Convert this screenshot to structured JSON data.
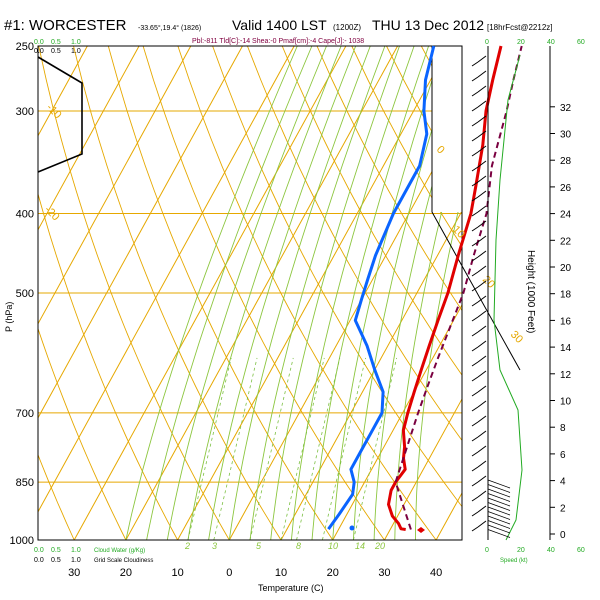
{
  "header": {
    "station": "#1: WORCESTER",
    "coords": "-33.65°,19.4° (1826)",
    "valid": "Valid 1400 LST",
    "valid_utc": "(1200Z)",
    "date": "THU 13 Dec 2012",
    "forecast": "[18hrFcst@2212z]",
    "indices": "Pbl:-811 Tld[C]:-14 Shea:-0 Pmaf[cm]:-4 Cape[J]:- 1038"
  },
  "chart_data": {
    "type": "line",
    "xlabel": "Temperature (C)",
    "ylabel": "P (hPa)",
    "right_label": "Height (1000 Feet)",
    "xlim": [
      -37,
      45
    ],
    "ylim": [
      1000,
      250
    ],
    "log_y": true,
    "x_ticks": [
      -30,
      -20,
      -10,
      0,
      10,
      20,
      30,
      40
    ],
    "x_tick_labels": [
      "30",
      "20",
      "10",
      "0",
      "10",
      "20",
      "30",
      "40"
    ],
    "p_ticks": [
      250,
      300,
      400,
      500,
      700,
      850,
      1000
    ],
    "height_ticks": [
      0,
      2,
      4,
      6,
      8,
      10,
      12,
      14,
      16,
      18,
      20,
      22,
      24,
      26,
      28,
      30,
      32
    ],
    "isotherm_labels": [
      "-10",
      "-20",
      "0",
      "10",
      "20",
      "30"
    ],
    "mixing_ratio_labels": [
      "2",
      "3",
      "5",
      "8",
      "10",
      "14",
      "20"
    ],
    "series": [
      {
        "name": "Temperature",
        "color": "#e00000",
        "points": [
          [
            33,
            971
          ],
          [
            32,
            969
          ],
          [
            31,
            955
          ],
          [
            29,
            935
          ],
          [
            27,
            905
          ],
          [
            26,
            870
          ],
          [
            26,
            850
          ],
          [
            26.5,
            820
          ],
          [
            25,
            795
          ],
          [
            24,
            770
          ],
          [
            22,
            735
          ],
          [
            21,
            700
          ],
          [
            20,
            660
          ],
          [
            19,
            620
          ],
          [
            18,
            580
          ],
          [
            17,
            540
          ],
          [
            16,
            500
          ],
          [
            14,
            450
          ],
          [
            12,
            400
          ],
          [
            10,
            370
          ],
          [
            7,
            330
          ],
          [
            4,
            300
          ],
          [
            2,
            275
          ],
          [
            0,
            250
          ]
        ]
      },
      {
        "name": "Dewpoint",
        "color": "#0a64ff",
        "points": [
          [
            18,
            970
          ],
          [
            18.5,
            930
          ],
          [
            19,
            880
          ],
          [
            18,
            850
          ],
          [
            16,
            820
          ],
          [
            16,
            780
          ],
          [
            16,
            740
          ],
          [
            16,
            700
          ],
          [
            14,
            660
          ],
          [
            10,
            620
          ],
          [
            6,
            580
          ],
          [
            1,
            540
          ],
          [
            0,
            510
          ],
          [
            -1,
            480
          ],
          [
            -2,
            450
          ],
          [
            -3,
            400
          ],
          [
            -3,
            350
          ],
          [
            -5,
            320
          ],
          [
            -8,
            300
          ],
          [
            -11,
            275
          ],
          [
            -13,
            250
          ]
        ]
      },
      {
        "name": "Parcel",
        "color": "#7a0040",
        "points": [
          [
            34,
            971
          ],
          [
            26,
            850
          ],
          [
            23,
            700
          ],
          [
            22,
            650
          ],
          [
            21,
            600
          ],
          [
            19,
            500
          ],
          [
            17,
            450
          ],
          [
            15,
            400
          ],
          [
            11,
            350
          ],
          [
            8,
            300
          ],
          [
            6,
            275
          ],
          [
            4,
            250
          ]
        ]
      },
      {
        "name": "Surface markers",
        "color": "#0a64ff",
        "points": [
          [
            20,
            971
          ],
          [
            33,
            971
          ]
        ]
      }
    ],
    "surface_point_temp": 34,
    "surface_point_dew": 20,
    "cloud_water_label": "Cloud Water (g/Kg)",
    "cloudiness_label": "Grid Scale Cloudiness",
    "cloud_scale": [
      "0.0",
      "0.5",
      "1.0"
    ],
    "cloud_scale_top": [
      "0.0",
      "0.5",
      "1.0"
    ],
    "cloud_scale_top_green": [
      "0.0",
      "0.5",
      "1.0"
    ],
    "wind_speed_label": "Speed (kt)",
    "wind_speed_ticks": [
      "0",
      "20",
      "40",
      "60"
    ],
    "wind_speed_ticks_top": [
      "0",
      "20",
      "40",
      "60"
    ],
    "wind_speed_ticks_bottom": [
      "0",
      "20",
      "40",
      "60"
    ]
  }
}
